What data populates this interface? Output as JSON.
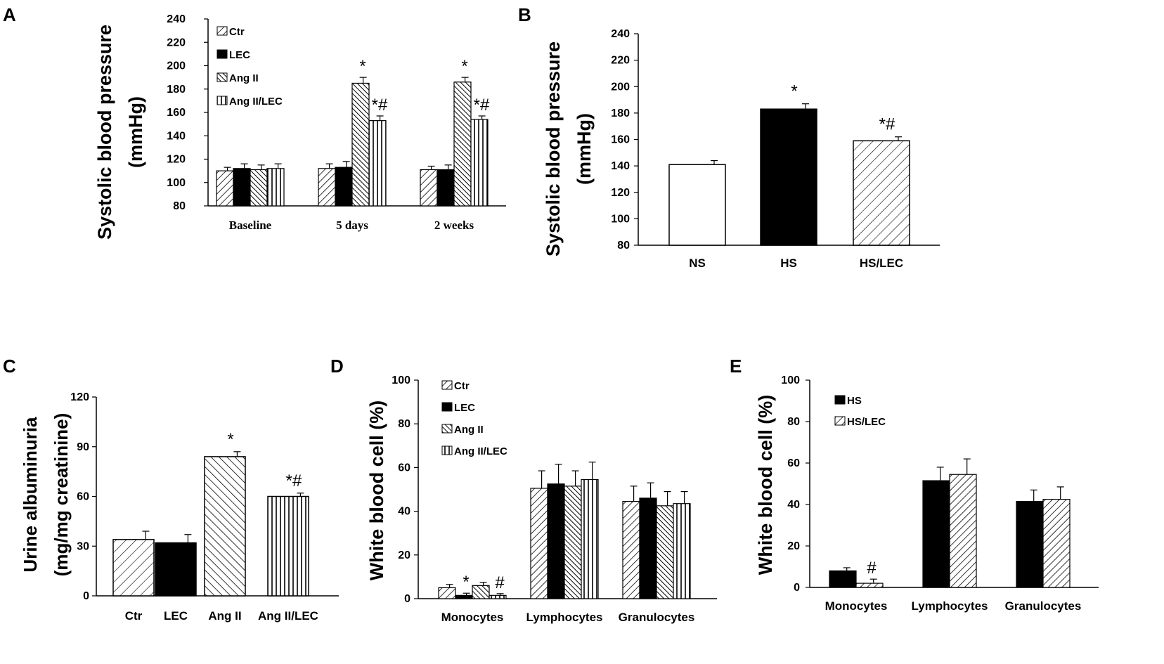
{
  "colors": {
    "black": "#000000",
    "white": "#ffffff"
  },
  "chart_data": [
    {
      "panel": "A",
      "type": "bar",
      "ylabel": [
        "Systolic blood pressure",
        "(mmHg)"
      ],
      "ylim": [
        80,
        240
      ],
      "yticks": [
        80,
        100,
        120,
        140,
        160,
        180,
        200,
        220,
        240
      ],
      "categories": [
        "Baseline",
        "5 days",
        "2 weeks"
      ],
      "series": [
        {
          "name": "Ctr",
          "pattern": "diag-fwd",
          "values": [
            110,
            112,
            111
          ],
          "errors": [
            3,
            4,
            3
          ]
        },
        {
          "name": "LEC",
          "pattern": "solid-black",
          "values": [
            112,
            113,
            111
          ],
          "errors": [
            4,
            5,
            4
          ]
        },
        {
          "name": "Ang II",
          "pattern": "diag-back-dense",
          "values": [
            111,
            185,
            186
          ],
          "errors": [
            4,
            5,
            4
          ]
        },
        {
          "name": "Ang II/LEC",
          "pattern": "vertical",
          "values": [
            112,
            153,
            154
          ],
          "errors": [
            4,
            4,
            3
          ]
        }
      ],
      "annotations": [
        {
          "series": 2,
          "category": 1,
          "text": "*"
        },
        {
          "series": 3,
          "category": 1,
          "text": "*#"
        },
        {
          "series": 2,
          "category": 2,
          "text": "*"
        },
        {
          "series": 3,
          "category": 2,
          "text": "*#"
        }
      ],
      "legend": "top-left"
    },
    {
      "panel": "B",
      "type": "bar",
      "ylabel": [
        "Systolic blood pressure",
        "(mmHg)"
      ],
      "ylim": [
        80,
        240
      ],
      "yticks": [
        80,
        100,
        120,
        140,
        160,
        180,
        200,
        220,
        240
      ],
      "categories": [
        "NS",
        "HS",
        "HS/LEC"
      ],
      "patterns": [
        "white",
        "solid-black",
        "diag-fwd-wide"
      ],
      "values": [
        141,
        183,
        159
      ],
      "errors": [
        3,
        4,
        3
      ],
      "annotations": [
        {
          "category": 1,
          "text": "*"
        },
        {
          "category": 2,
          "text": "*#"
        }
      ]
    },
    {
      "panel": "C",
      "type": "bar",
      "ylabel": [
        "Urine albuminuria",
        "(mg/mg creatinine)"
      ],
      "ylim": [
        0,
        120
      ],
      "yticks": [
        0,
        30,
        60,
        90,
        120
      ],
      "categories": [
        "Ctr",
        "LEC",
        "Ang II",
        "Ang II/LEC"
      ],
      "patterns": [
        "diag-fwd-wide",
        "solid-black",
        "diag-back",
        "vertical"
      ],
      "values": [
        34,
        32,
        84,
        60
      ],
      "errors": [
        5,
        5,
        3,
        2
      ],
      "annotations": [
        {
          "category": 2,
          "text": "*"
        },
        {
          "category": 3,
          "text": "*#"
        }
      ]
    },
    {
      "panel": "D",
      "type": "bar",
      "ylabel": [
        "White    blood cell (%)"
      ],
      "ylim": [
        0,
        100
      ],
      "yticks": [
        0,
        20,
        40,
        60,
        80,
        100
      ],
      "categories": [
        "Monocytes",
        "Lymphocytes",
        "Granulocytes"
      ],
      "series": [
        {
          "name": "Ctr",
          "pattern": "diag-fwd",
          "values": [
            5,
            50.5,
            44.5
          ],
          "errors": [
            1.5,
            8,
            7
          ]
        },
        {
          "name": "LEC",
          "pattern": "solid-black",
          "values": [
            1.5,
            52.5,
            46
          ],
          "errors": [
            1,
            9,
            7
          ]
        },
        {
          "name": "Ang II",
          "pattern": "diag-back-dense",
          "values": [
            6,
            51.5,
            42.5
          ],
          "errors": [
            1.5,
            7,
            6.5
          ]
        },
        {
          "name": "Ang II/LEC",
          "pattern": "vertical",
          "values": [
            1.5,
            54.5,
            43.5
          ],
          "errors": [
            0.8,
            8,
            5.5
          ]
        }
      ],
      "annotations": [
        {
          "series": 1,
          "category": 0,
          "text": "*"
        },
        {
          "series": 3,
          "category": 0,
          "text": "#"
        }
      ],
      "legend": "top-left"
    },
    {
      "panel": "E",
      "type": "bar",
      "ylabel": [
        "White blood cell (%)"
      ],
      "ylim": [
        0,
        100
      ],
      "yticks": [
        0,
        20,
        40,
        60,
        80,
        100
      ],
      "categories": [
        "Monocytes",
        "Lymphocytes",
        "Granulocytes"
      ],
      "series": [
        {
          "name": "HS",
          "pattern": "solid-black",
          "values": [
            8,
            51.5,
            41.5
          ],
          "errors": [
            1.5,
            6.5,
            5.5
          ]
        },
        {
          "name": "HS/LEC",
          "pattern": "diag-fwd",
          "values": [
            2,
            54.5,
            42.5
          ],
          "errors": [
            2,
            7.5,
            6
          ]
        }
      ],
      "annotations": [
        {
          "series": 1,
          "category": 0,
          "text": "#"
        }
      ],
      "legend": "top-left"
    }
  ]
}
